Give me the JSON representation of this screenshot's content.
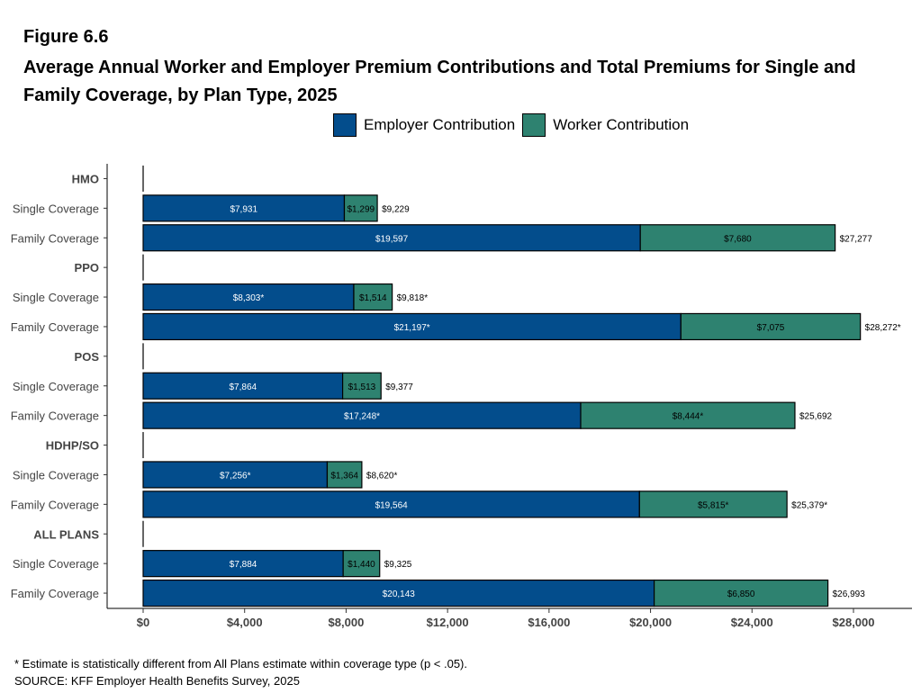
{
  "figure": {
    "number": "Figure 6.6",
    "title": "Average Annual Worker and Employer Premium Contributions and Total Premiums for Single and Family Coverage, by Plan Type, 2025"
  },
  "legend": {
    "employer_label": "Employer Contribution",
    "worker_label": "Worker Contribution",
    "employer_color": "#034d8c",
    "worker_color": "#2e8270"
  },
  "footnote": "* Estimate is statistically different from All Plans estimate within coverage type (p < .05).",
  "source": "SOURCE: KFF Employer Health Benefits Survey, 2025",
  "chart_data": {
    "type": "bar",
    "orientation": "horizontal",
    "stacked": true,
    "xlim": [
      0,
      30000
    ],
    "x_ticks": [
      0,
      4000,
      8000,
      12000,
      16000,
      20000,
      24000,
      28000
    ],
    "x_tick_labels": [
      "$0",
      "$4,000",
      "$8,000",
      "$12,000",
      "$16,000",
      "$20,000",
      "$24,000",
      "$28,000"
    ],
    "legend_position": "top",
    "grid": false,
    "rows": [
      {
        "label": "HMO",
        "header": true
      },
      {
        "label": "Single Coverage",
        "employer": 7931,
        "worker": 1299,
        "total": 9229,
        "employer_label": "$7,931",
        "worker_label": "$1,299",
        "total_label": "$9,229"
      },
      {
        "label": "Family Coverage",
        "employer": 19597,
        "worker": 7680,
        "total": 27277,
        "employer_label": "$19,597",
        "worker_label": "$7,680",
        "total_label": "$27,277"
      },
      {
        "label": "PPO",
        "header": true
      },
      {
        "label": "Single Coverage",
        "employer": 8303,
        "worker": 1514,
        "total": 9818,
        "employer_label": "$8,303*",
        "worker_label": "$1,514",
        "total_label": "$9,818*"
      },
      {
        "label": "Family Coverage",
        "employer": 21197,
        "worker": 7075,
        "total": 28272,
        "employer_label": "$21,197*",
        "worker_label": "$7,075",
        "total_label": "$28,272*"
      },
      {
        "label": "POS",
        "header": true
      },
      {
        "label": "Single Coverage",
        "employer": 7864,
        "worker": 1513,
        "total": 9377,
        "employer_label": "$7,864",
        "worker_label": "$1,513",
        "total_label": "$9,377"
      },
      {
        "label": "Family Coverage",
        "employer": 17248,
        "worker": 8444,
        "total": 25692,
        "employer_label": "$17,248*",
        "worker_label": "$8,444*",
        "total_label": "$25,692"
      },
      {
        "label": "HDHP/SO",
        "header": true
      },
      {
        "label": "Single Coverage",
        "employer": 7256,
        "worker": 1364,
        "total": 8620,
        "employer_label": "$7,256*",
        "worker_label": "$1,364",
        "total_label": "$8,620*"
      },
      {
        "label": "Family Coverage",
        "employer": 19564,
        "worker": 5815,
        "total": 25379,
        "employer_label": "$19,564",
        "worker_label": "$5,815*",
        "total_label": "$25,379*"
      },
      {
        "label": "ALL PLANS",
        "header": true
      },
      {
        "label": "Single Coverage",
        "employer": 7884,
        "worker": 1440,
        "total": 9325,
        "employer_label": "$7,884",
        "worker_label": "$1,440",
        "total_label": "$9,325"
      },
      {
        "label": "Family Coverage",
        "employer": 20143,
        "worker": 6850,
        "total": 26993,
        "employer_label": "$20,143",
        "worker_label": "$6,850",
        "total_label": "$26,993"
      }
    ]
  }
}
